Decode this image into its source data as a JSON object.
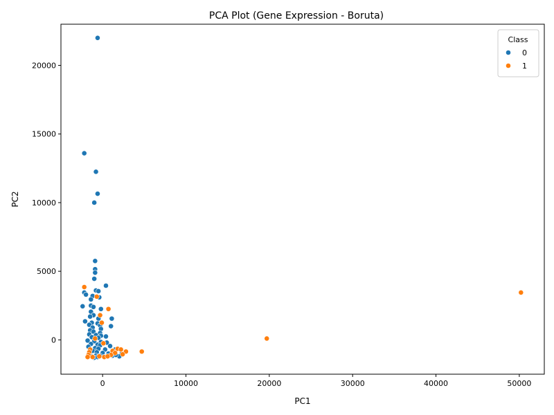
{
  "chart_data": {
    "type": "scatter",
    "title": "PCA Plot (Gene Expression - Boruta)",
    "xlabel": "PC1",
    "ylabel": "PC2",
    "xlim": [
      -5000,
      53000
    ],
    "ylim": [
      -2500,
      23000
    ],
    "xticks": [
      0,
      10000,
      20000,
      30000,
      40000,
      50000
    ],
    "yticks": [
      0,
      5000,
      10000,
      15000,
      20000
    ],
    "grid": false,
    "legend": {
      "title": "Class",
      "position": "top-right"
    },
    "series": [
      {
        "name": "0",
        "color": "#1f77b4",
        "points": [
          [
            -600,
            22000
          ],
          [
            -2200,
            13600
          ],
          [
            -800,
            12250
          ],
          [
            -600,
            10650
          ],
          [
            -1000,
            10000
          ],
          [
            -900,
            5750
          ],
          [
            -900,
            5150
          ],
          [
            -900,
            4900
          ],
          [
            -1000,
            4450
          ],
          [
            400,
            3950
          ],
          [
            -2200,
            3450
          ],
          [
            -2000,
            3300
          ],
          [
            -800,
            3600
          ],
          [
            -500,
            3550
          ],
          [
            -1200,
            3200
          ],
          [
            -400,
            3100
          ],
          [
            -1400,
            2950
          ],
          [
            -2400,
            2450
          ],
          [
            -1400,
            2500
          ],
          [
            -1100,
            2400
          ],
          [
            -200,
            2250
          ],
          [
            -1400,
            2050
          ],
          [
            -1100,
            1800
          ],
          [
            -1500,
            1700
          ],
          [
            -500,
            1550
          ],
          [
            1100,
            1550
          ],
          [
            -2100,
            1350
          ],
          [
            -1300,
            1250
          ],
          [
            -600,
            1200
          ],
          [
            -1600,
            1100
          ],
          [
            -300,
            1050
          ],
          [
            1000,
            1000
          ],
          [
            -1200,
            900
          ],
          [
            -200,
            800
          ],
          [
            -1500,
            700
          ],
          [
            -1100,
            600
          ],
          [
            -300,
            500
          ],
          [
            -1600,
            400
          ],
          [
            -800,
            350
          ],
          [
            -200,
            300
          ],
          [
            400,
            250
          ],
          [
            -1300,
            200
          ],
          [
            -500,
            150
          ],
          [
            -1800,
            -50
          ],
          [
            -1000,
            -100
          ],
          [
            -200,
            -150
          ],
          [
            500,
            -200
          ],
          [
            -1400,
            -300
          ],
          [
            -600,
            -350
          ],
          [
            -300,
            -400
          ],
          [
            900,
            -450
          ],
          [
            -1700,
            -500
          ],
          [
            -900,
            -600
          ],
          [
            -500,
            -650
          ],
          [
            300,
            -700
          ],
          [
            1500,
            -700
          ],
          [
            -1200,
            -800
          ],
          [
            -700,
            -900
          ],
          [
            0,
            -950
          ],
          [
            700,
            -1000
          ],
          [
            2300,
            -1000
          ],
          [
            -1500,
            -1100
          ],
          [
            -800,
            -1150
          ],
          [
            -300,
            -1150
          ],
          [
            500,
            -1200
          ],
          [
            1200,
            -1150
          ],
          [
            -1000,
            -1300
          ],
          [
            200,
            -1250
          ],
          [
            2000,
            -1200
          ],
          [
            -600,
            -1250
          ],
          [
            1600,
            -1100
          ],
          [
            -1300,
            -1200
          ]
        ]
      },
      {
        "name": "1",
        "color": "#ff7f0e",
        "points": [
          [
            50200,
            3450
          ],
          [
            19700,
            100
          ],
          [
            -2200,
            3850
          ],
          [
            700,
            2250
          ],
          [
            -700,
            3150
          ],
          [
            -300,
            1800
          ],
          [
            -100,
            1250
          ],
          [
            -900,
            100
          ],
          [
            100,
            -250
          ],
          [
            -1500,
            -700
          ],
          [
            -1600,
            -900
          ],
          [
            1800,
            -650
          ],
          [
            2200,
            -700
          ],
          [
            1200,
            -800
          ],
          [
            2800,
            -850
          ],
          [
            4700,
            -850
          ],
          [
            1500,
            -950
          ],
          [
            -1700,
            -1100
          ],
          [
            -1200,
            -1250
          ],
          [
            200,
            -1250
          ],
          [
            1000,
            -1100
          ],
          [
            -400,
            -1200
          ],
          [
            2400,
            -1050
          ],
          [
            -1800,
            -1250
          ],
          [
            600,
            -1200
          ]
        ]
      }
    ]
  }
}
